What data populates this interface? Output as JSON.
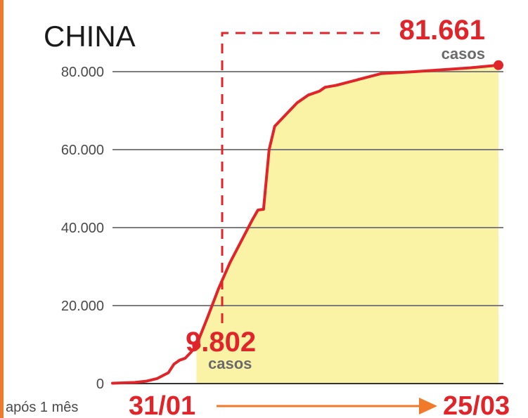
{
  "chart_data": {
    "type": "area",
    "title": "CHINA",
    "y_ticks": [
      "0",
      "20.000",
      "40.000",
      "60.000",
      "80.000"
    ],
    "ylim": [
      0,
      80000
    ],
    "grid": true,
    "series": [
      {
        "points": [
          [
            "2020-01-16",
            100
          ],
          [
            "2020-01-20",
            300
          ],
          [
            "2020-01-22",
            600
          ],
          [
            "2020-01-24",
            1300
          ],
          [
            "2020-01-26",
            2800
          ],
          [
            "2020-01-27",
            5000
          ],
          [
            "2020-01-28",
            6000
          ],
          [
            "2020-01-29",
            6500
          ],
          [
            "2020-01-30",
            8000
          ],
          [
            "2020-01-31",
            9802
          ],
          [
            "2020-02-02",
            17000
          ],
          [
            "2020-02-04",
            24500
          ],
          [
            "2020-02-06",
            31000
          ],
          [
            "2020-02-08",
            36500
          ],
          [
            "2020-02-10",
            42000
          ],
          [
            "2020-02-11",
            44500
          ],
          [
            "2020-02-12",
            44700
          ],
          [
            "2020-02-13",
            60000
          ],
          [
            "2020-02-14",
            66000
          ],
          [
            "2020-02-16",
            69000
          ],
          [
            "2020-02-18",
            72000
          ],
          [
            "2020-02-20",
            74000
          ],
          [
            "2020-02-22",
            75000
          ],
          [
            "2020-02-23",
            76000
          ],
          [
            "2020-02-25",
            76500
          ],
          [
            "2020-02-29",
            78000
          ],
          [
            "2020-03-04",
            79500
          ],
          [
            "2020-03-10",
            80000
          ],
          [
            "2020-03-15",
            80500
          ],
          [
            "2020-03-20",
            81000
          ],
          [
            "2020-03-25",
            81661
          ]
        ]
      }
    ],
    "shaded_range": [
      "2020-01-31",
      "2020-03-25"
    ],
    "annotations": {
      "start_value": "9.802",
      "start_unit": "casos",
      "end_value": "81.661",
      "end_unit": "casos",
      "period_label": "após 1 mês",
      "start_date": "31/01",
      "end_date": "25/03"
    },
    "colors": {
      "line": "#e0242a",
      "fill": "#faf3a6",
      "arrow": "#f07a2a",
      "grid": "#7d7d7d",
      "axis": "#333333"
    }
  }
}
